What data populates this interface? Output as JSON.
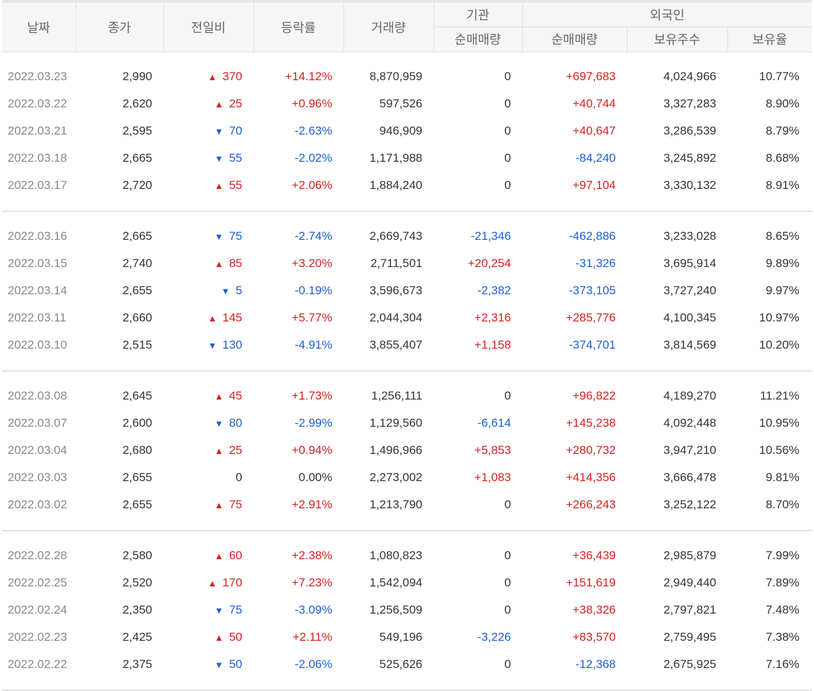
{
  "header": {
    "date": "날짜",
    "close": "종가",
    "change": "전일비",
    "change_rate": "등락률",
    "volume": "거래량",
    "institution": "기관",
    "inst_net": "순매매량",
    "foreign": "외국인",
    "foreign_net": "순매매량",
    "foreign_shares": "보유주수",
    "foreign_ratio": "보유율"
  },
  "colors": {
    "up": "#d72020",
    "down": "#1c5fd6",
    "date": "#888888",
    "header_bg": "#f6f6f6"
  },
  "icons": {
    "up": "triangle-up-icon",
    "down": "triangle-down-icon"
  },
  "arrows": {
    "up": "▲",
    "down": "▼"
  },
  "groups": [
    [
      {
        "date": "2022.03.23",
        "close": "2,990",
        "dir": "up",
        "change": "370",
        "rate": "+14.12%",
        "volume": "8,870,959",
        "inst": "0",
        "foreign": "+697,683",
        "shares": "4,024,966",
        "ratio": "10.77%"
      },
      {
        "date": "2022.03.22",
        "close": "2,620",
        "dir": "up",
        "change": "25",
        "rate": "+0.96%",
        "volume": "597,526",
        "inst": "0",
        "foreign": "+40,744",
        "shares": "3,327,283",
        "ratio": "8.90%"
      },
      {
        "date": "2022.03.21",
        "close": "2,595",
        "dir": "down",
        "change": "70",
        "rate": "-2.63%",
        "volume": "946,909",
        "inst": "0",
        "foreign": "+40,647",
        "shares": "3,286,539",
        "ratio": "8.79%"
      },
      {
        "date": "2022.03.18",
        "close": "2,665",
        "dir": "down",
        "change": "55",
        "rate": "-2.02%",
        "volume": "1,171,988",
        "inst": "0",
        "foreign": "-84,240",
        "shares": "3,245,892",
        "ratio": "8.68%"
      },
      {
        "date": "2022.03.17",
        "close": "2,720",
        "dir": "up",
        "change": "55",
        "rate": "+2.06%",
        "volume": "1,884,240",
        "inst": "0",
        "foreign": "+97,104",
        "shares": "3,330,132",
        "ratio": "8.91%"
      }
    ],
    [
      {
        "date": "2022.03.16",
        "close": "2,665",
        "dir": "down",
        "change": "75",
        "rate": "-2.74%",
        "volume": "2,669,743",
        "inst": "-21,346",
        "foreign": "-462,886",
        "shares": "3,233,028",
        "ratio": "8.65%"
      },
      {
        "date": "2022.03.15",
        "close": "2,740",
        "dir": "up",
        "change": "85",
        "rate": "+3.20%",
        "volume": "2,711,501",
        "inst": "+20,254",
        "foreign": "-31,326",
        "shares": "3,695,914",
        "ratio": "9.89%"
      },
      {
        "date": "2022.03.14",
        "close": "2,655",
        "dir": "down",
        "change": "5",
        "rate": "-0.19%",
        "volume": "3,596,673",
        "inst": "-2,382",
        "foreign": "-373,105",
        "shares": "3,727,240",
        "ratio": "9.97%"
      },
      {
        "date": "2022.03.11",
        "close": "2,660",
        "dir": "up",
        "change": "145",
        "rate": "+5.77%",
        "volume": "2,044,304",
        "inst": "+2,316",
        "foreign": "+285,776",
        "shares": "4,100,345",
        "ratio": "10.97%"
      },
      {
        "date": "2022.03.10",
        "close": "2,515",
        "dir": "down",
        "change": "130",
        "rate": "-4.91%",
        "volume": "3,855,407",
        "inst": "+1,158",
        "foreign": "-374,701",
        "shares": "3,814,569",
        "ratio": "10.20%"
      }
    ],
    [
      {
        "date": "2022.03.08",
        "close": "2,645",
        "dir": "up",
        "change": "45",
        "rate": "+1.73%",
        "volume": "1,256,111",
        "inst": "0",
        "foreign": "+96,822",
        "shares": "4,189,270",
        "ratio": "11.21%"
      },
      {
        "date": "2022.03.07",
        "close": "2,600",
        "dir": "down",
        "change": "80",
        "rate": "-2.99%",
        "volume": "1,129,560",
        "inst": "-6,614",
        "foreign": "+145,238",
        "shares": "4,092,448",
        "ratio": "10.95%"
      },
      {
        "date": "2022.03.04",
        "close": "2,680",
        "dir": "up",
        "change": "25",
        "rate": "+0.94%",
        "volume": "1,496,966",
        "inst": "+5,853",
        "foreign": "+280,732",
        "shares": "3,947,210",
        "ratio": "10.56%"
      },
      {
        "date": "2022.03.03",
        "close": "2,655",
        "dir": "none",
        "change": "0",
        "rate": "0.00%",
        "volume": "2,273,002",
        "inst": "+1,083",
        "foreign": "+414,356",
        "shares": "3,666,478",
        "ratio": "9.81%"
      },
      {
        "date": "2022.03.02",
        "close": "2,655",
        "dir": "up",
        "change": "75",
        "rate": "+2.91%",
        "volume": "1,213,790",
        "inst": "0",
        "foreign": "+266,243",
        "shares": "3,252,122",
        "ratio": "8.70%"
      }
    ],
    [
      {
        "date": "2022.02.28",
        "close": "2,580",
        "dir": "up",
        "change": "60",
        "rate": "+2.38%",
        "volume": "1,080,823",
        "inst": "0",
        "foreign": "+36,439",
        "shares": "2,985,879",
        "ratio": "7.99%"
      },
      {
        "date": "2022.02.25",
        "close": "2,520",
        "dir": "up",
        "change": "170",
        "rate": "+7.23%",
        "volume": "1,542,094",
        "inst": "0",
        "foreign": "+151,619",
        "shares": "2,949,440",
        "ratio": "7.89%"
      },
      {
        "date": "2022.02.24",
        "close": "2,350",
        "dir": "down",
        "change": "75",
        "rate": "-3.09%",
        "volume": "1,256,509",
        "inst": "0",
        "foreign": "+38,326",
        "shares": "2,797,821",
        "ratio": "7.48%"
      },
      {
        "date": "2022.02.23",
        "close": "2,425",
        "dir": "up",
        "change": "50",
        "rate": "+2.11%",
        "volume": "549,196",
        "inst": "-3,226",
        "foreign": "+83,570",
        "shares": "2,759,495",
        "ratio": "7.38%"
      },
      {
        "date": "2022.02.22",
        "close": "2,375",
        "dir": "down",
        "change": "50",
        "rate": "-2.06%",
        "volume": "525,626",
        "inst": "0",
        "foreign": "-12,368",
        "shares": "2,675,925",
        "ratio": "7.16%"
      }
    ]
  ]
}
